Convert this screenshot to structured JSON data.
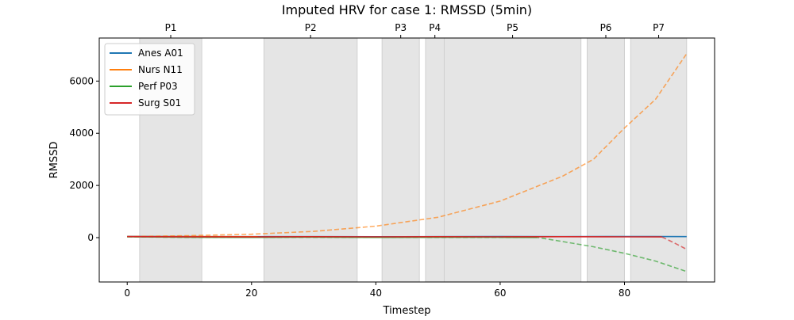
{
  "chart_data": {
    "type": "line",
    "title": "Imputed HRV for case 1: RMSSD (5min)",
    "xlabel": "Timestep",
    "ylabel": "RMSSD",
    "xlim": [
      -4.5,
      94.5
    ],
    "ylim": [
      -1700,
      7650
    ],
    "xticks": [
      0,
      20,
      40,
      60,
      80
    ],
    "yticks": [
      0,
      2000,
      4000,
      6000
    ],
    "grid": false,
    "legend_position": "top-left",
    "phases": [
      {
        "label": "P1",
        "start": 2,
        "end": 12
      },
      {
        "label": "P2",
        "start": 22,
        "end": 37
      },
      {
        "label": "P3",
        "start": 41,
        "end": 47
      },
      {
        "label": "P4",
        "start": 48,
        "end": 51
      },
      {
        "label": "P5",
        "start": 51,
        "end": 73
      },
      {
        "label": "P6",
        "start": 74,
        "end": 80
      },
      {
        "label": "P7",
        "start": 81,
        "end": 90
      }
    ],
    "phase_color": "#e5e5e5",
    "series": [
      {
        "name": "Anes A01",
        "color": "#1f77b4",
        "solid": [
          [
            0,
            50
          ],
          [
            10,
            42
          ],
          [
            20,
            38
          ],
          [
            30,
            40
          ],
          [
            40,
            35
          ],
          [
            50,
            40
          ],
          [
            60,
            42
          ],
          [
            70,
            40
          ],
          [
            80,
            45
          ],
          [
            85,
            42
          ],
          [
            90,
            40
          ]
        ],
        "dashed": []
      },
      {
        "name": "Nurs N11",
        "color": "#ff7f0e",
        "solid": [
          [
            0,
            40
          ],
          [
            10,
            38
          ],
          [
            21,
            35
          ]
        ],
        "dashed": [
          [
            0,
            40
          ],
          [
            10,
            75
          ],
          [
            20,
            130
          ],
          [
            30,
            240
          ],
          [
            40,
            440
          ],
          [
            50,
            780
          ],
          [
            60,
            1400
          ],
          [
            70,
            2350
          ],
          [
            75,
            3000
          ],
          [
            80,
            4200
          ],
          [
            85,
            5300
          ],
          [
            90,
            7050
          ]
        ]
      },
      {
        "name": "Perf P03",
        "color": "#2ca02c",
        "solid": [
          [
            0,
            30
          ],
          [
            10,
            15
          ],
          [
            20,
            10
          ],
          [
            30,
            20
          ],
          [
            40,
            10
          ],
          [
            50,
            18
          ],
          [
            60,
            15
          ],
          [
            66,
            10
          ]
        ],
        "dashed": [
          [
            0,
            30
          ],
          [
            10,
            10
          ],
          [
            20,
            12
          ],
          [
            66,
            10
          ],
          [
            70,
            -150
          ],
          [
            75,
            -350
          ],
          [
            80,
            -600
          ],
          [
            85,
            -900
          ],
          [
            90,
            -1300
          ]
        ]
      },
      {
        "name": "Surg S01",
        "color": "#d62728",
        "solid": [
          [
            0,
            40
          ],
          [
            10,
            32
          ],
          [
            20,
            28
          ],
          [
            30,
            35
          ],
          [
            40,
            30
          ],
          [
            50,
            35
          ],
          [
            60,
            30
          ],
          [
            70,
            35
          ],
          [
            80,
            30
          ],
          [
            86,
            28
          ]
        ],
        "dashed": [
          [
            86,
            28
          ],
          [
            88,
            -200
          ],
          [
            90,
            -450
          ]
        ]
      }
    ]
  }
}
